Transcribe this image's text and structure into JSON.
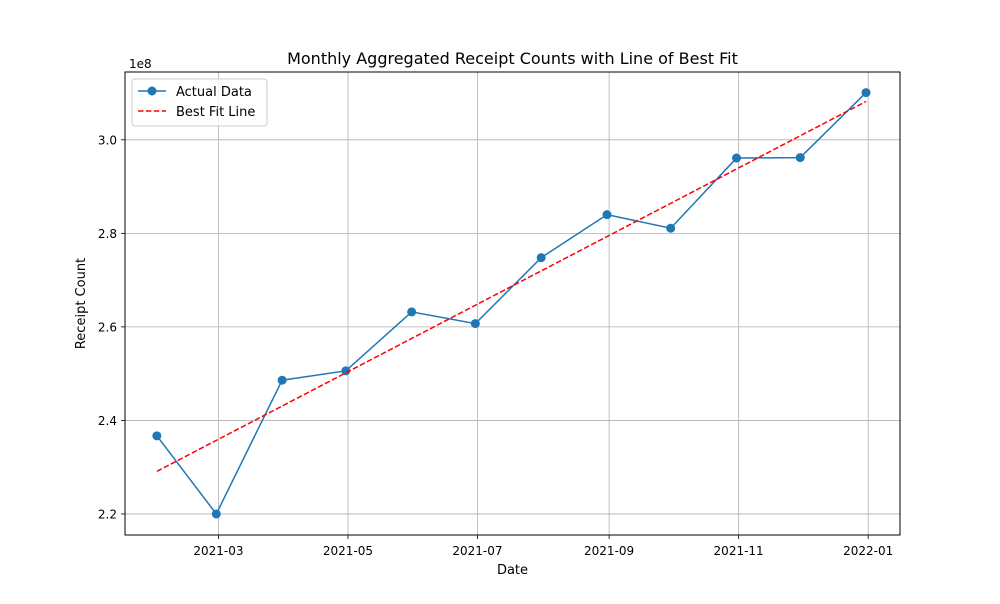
{
  "chart_data": {
    "type": "line",
    "title": "Monthly Aggregated Receipt Counts with Line of Best Fit",
    "xlabel": "Date",
    "ylabel": "Receipt Count",
    "y_offset_label": "1e8",
    "x_ticks": [
      "2021-03",
      "2021-05",
      "2021-07",
      "2021-09",
      "2021-11",
      "2022-01"
    ],
    "y_ticks": [
      2.2,
      2.4,
      2.6,
      2.8,
      3.0
    ],
    "x_range": [
      "2021-01-16",
      "2022-01-16"
    ],
    "y_range": [
      2.155,
      3.145
    ],
    "y_scale_note": "values in units of 1e8",
    "grid": true,
    "legend_position": "top-left",
    "series": [
      {
        "name": "Actual Data",
        "style": "solid line with circle markers",
        "color": "#1f77b4",
        "x": [
          "2021-01-31",
          "2021-02-28",
          "2021-03-31",
          "2021-04-30",
          "2021-05-31",
          "2021-06-30",
          "2021-07-31",
          "2021-08-31",
          "2021-09-30",
          "2021-10-31",
          "2021-11-30",
          "2021-12-31"
        ],
        "y": [
          2.367,
          2.2,
          2.486,
          2.506,
          2.632,
          2.607,
          2.748,
          2.84,
          2.811,
          2.961,
          2.962,
          3.101
        ]
      },
      {
        "name": "Best Fit Line",
        "style": "dashed line",
        "color": "#ff0000",
        "x": [
          "2021-01-31",
          "2021-12-31"
        ],
        "y": [
          2.291,
          3.082
        ]
      }
    ]
  }
}
